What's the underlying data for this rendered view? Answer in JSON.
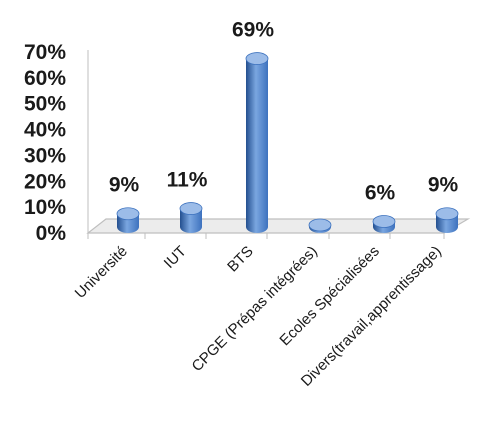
{
  "chart_data": {
    "type": "bar",
    "categories": [
      "Université",
      "IUT",
      "BTS",
      "CPGE (Prépas intégrées)",
      "Ecoles Spécialisées",
      "Divers(travail,apprentissage)"
    ],
    "values": [
      9,
      11,
      69,
      0.5,
      6,
      9
    ],
    "data_labels": [
      "9%",
      "11%",
      "69%",
      "",
      "6%",
      "9%"
    ],
    "y_ticks": [
      "0%",
      "10%",
      "20%",
      "30%",
      "40%",
      "50%",
      "60%",
      "70%"
    ],
    "ylim": [
      0,
      70
    ],
    "grid": false,
    "legend": "none",
    "colors": {
      "bar_front": "#3d72be",
      "bar_light": "#7aa6e0",
      "bar_dark": "#234f8f",
      "bar_top": "#9cbce8",
      "floor": "#ececec",
      "axis": "#bfbfbf"
    }
  }
}
